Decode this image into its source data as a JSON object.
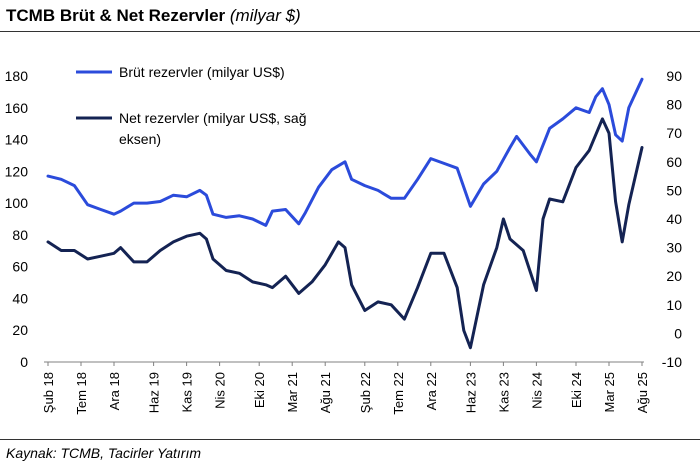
{
  "header": {
    "title": "TCMB Brüt & Net Rezervler",
    "subtitle": "(milyar $)"
  },
  "footer": {
    "source": "Kaynak: TCMB, Tacirler Yatırım"
  },
  "chart_data": {
    "type": "line",
    "title": "TCMB Brüt & Net Rezervler",
    "subtitle": "(milyar $)",
    "xlabel": "",
    "ylabel": "",
    "grid": false,
    "legend_position": "top-left",
    "x_tick_labels": [
      "Şub 18",
      "Tem 18",
      "Ara 18",
      "Haz 19",
      "Kas 19",
      "Nis 20",
      "Eki 20",
      "Mar 21",
      "Ağu 21",
      "Şub 22",
      "Tem 22",
      "Ara 22",
      "Haz 23",
      "Kas 23",
      "Nis 24",
      "Eki 24",
      "Mar 25",
      "Ağu 25"
    ],
    "x_tick_dates": [
      "2018-02",
      "2018-07",
      "2018-12",
      "2019-06",
      "2019-11",
      "2020-04",
      "2020-10",
      "2021-03",
      "2021-08",
      "2022-02",
      "2022-07",
      "2022-12",
      "2023-06",
      "2023-11",
      "2024-04",
      "2024-10",
      "2025-03",
      "2025-08"
    ],
    "y_left": {
      "min": 0,
      "max": 180,
      "ticks": [
        0,
        20,
        40,
        60,
        80,
        100,
        120,
        140,
        160,
        180
      ]
    },
    "y_right": {
      "min": -10,
      "max": 90,
      "ticks": [
        -10,
        0,
        10,
        20,
        30,
        40,
        50,
        60,
        70,
        80,
        90
      ]
    },
    "series": [
      {
        "name": "Brüt rezervler (milyar US$)",
        "axis": "left",
        "color": "#2B4BDB",
        "points": [
          [
            "2018-02",
            117
          ],
          [
            "2018-04",
            115
          ],
          [
            "2018-06",
            111
          ],
          [
            "2018-08",
            99
          ],
          [
            "2018-10",
            96
          ],
          [
            "2018-12",
            93
          ],
          [
            "2019-01",
            95
          ],
          [
            "2019-03",
            100
          ],
          [
            "2019-05",
            100
          ],
          [
            "2019-07",
            101
          ],
          [
            "2019-09",
            105
          ],
          [
            "2019-11",
            104
          ],
          [
            "2020-01",
            108
          ],
          [
            "2020-02",
            105
          ],
          [
            "2020-03",
            93
          ],
          [
            "2020-05",
            91
          ],
          [
            "2020-07",
            92
          ],
          [
            "2020-09",
            90
          ],
          [
            "2020-11",
            86
          ],
          [
            "2020-12",
            95
          ],
          [
            "2021-02",
            96
          ],
          [
            "2021-04",
            87
          ],
          [
            "2021-05",
            94
          ],
          [
            "2021-07",
            110
          ],
          [
            "2021-09",
            121
          ],
          [
            "2021-11",
            126
          ],
          [
            "2021-12",
            115
          ],
          [
            "2022-02",
            111
          ],
          [
            "2022-04",
            108
          ],
          [
            "2022-06",
            103
          ],
          [
            "2022-08",
            103
          ],
          [
            "2022-10",
            115
          ],
          [
            "2022-12",
            128
          ],
          [
            "2023-02",
            125
          ],
          [
            "2023-04",
            122
          ],
          [
            "2023-05",
            110
          ],
          [
            "2023-06",
            98
          ],
          [
            "2023-08",
            112
          ],
          [
            "2023-10",
            120
          ],
          [
            "2023-12",
            135
          ],
          [
            "2024-01",
            142
          ],
          [
            "2024-03",
            131
          ],
          [
            "2024-04",
            126
          ],
          [
            "2024-06",
            147
          ],
          [
            "2024-08",
            153
          ],
          [
            "2024-10",
            160
          ],
          [
            "2024-12",
            157
          ],
          [
            "2025-01",
            167
          ],
          [
            "2025-02",
            172
          ],
          [
            "2025-03",
            162
          ],
          [
            "2025-04",
            143
          ],
          [
            "2025-05",
            139
          ],
          [
            "2025-06",
            160
          ],
          [
            "2025-08",
            178
          ]
        ]
      },
      {
        "name": "Net rezervler (milyar US$, sağ eksen)",
        "axis": "right",
        "color": "#142353",
        "points": [
          [
            "2018-02",
            32
          ],
          [
            "2018-04",
            29
          ],
          [
            "2018-06",
            29
          ],
          [
            "2018-08",
            26
          ],
          [
            "2018-10",
            27
          ],
          [
            "2018-12",
            28
          ],
          [
            "2019-01",
            30
          ],
          [
            "2019-03",
            25
          ],
          [
            "2019-05",
            25
          ],
          [
            "2019-07",
            29
          ],
          [
            "2019-09",
            32
          ],
          [
            "2019-11",
            34
          ],
          [
            "2020-01",
            35
          ],
          [
            "2020-02",
            33
          ],
          [
            "2020-03",
            26
          ],
          [
            "2020-05",
            22
          ],
          [
            "2020-07",
            21
          ],
          [
            "2020-09",
            18
          ],
          [
            "2020-11",
            17
          ],
          [
            "2020-12",
            16
          ],
          [
            "2021-02",
            20
          ],
          [
            "2021-04",
            14
          ],
          [
            "2021-06",
            18
          ],
          [
            "2021-08",
            24
          ],
          [
            "2021-10",
            32
          ],
          [
            "2021-11",
            30
          ],
          [
            "2021-12",
            17
          ],
          [
            "2022-02",
            8
          ],
          [
            "2022-04",
            11
          ],
          [
            "2022-06",
            10
          ],
          [
            "2022-08",
            5
          ],
          [
            "2022-10",
            16
          ],
          [
            "2022-12",
            28
          ],
          [
            "2023-02",
            28
          ],
          [
            "2023-04",
            16
          ],
          [
            "2023-05",
            1
          ],
          [
            "2023-06",
            -5
          ],
          [
            "2023-08",
            17
          ],
          [
            "2023-10",
            30
          ],
          [
            "2023-11",
            40
          ],
          [
            "2023-12",
            33
          ],
          [
            "2024-02",
            29
          ],
          [
            "2024-04",
            15
          ],
          [
            "2024-05",
            40
          ],
          [
            "2024-06",
            47
          ],
          [
            "2024-08",
            46
          ],
          [
            "2024-10",
            58
          ],
          [
            "2024-12",
            64
          ],
          [
            "2025-02",
            75
          ],
          [
            "2025-03",
            70
          ],
          [
            "2025-04",
            46
          ],
          [
            "2025-05",
            32
          ],
          [
            "2025-06",
            45
          ],
          [
            "2025-07",
            55
          ],
          [
            "2025-08",
            65
          ]
        ]
      }
    ]
  }
}
